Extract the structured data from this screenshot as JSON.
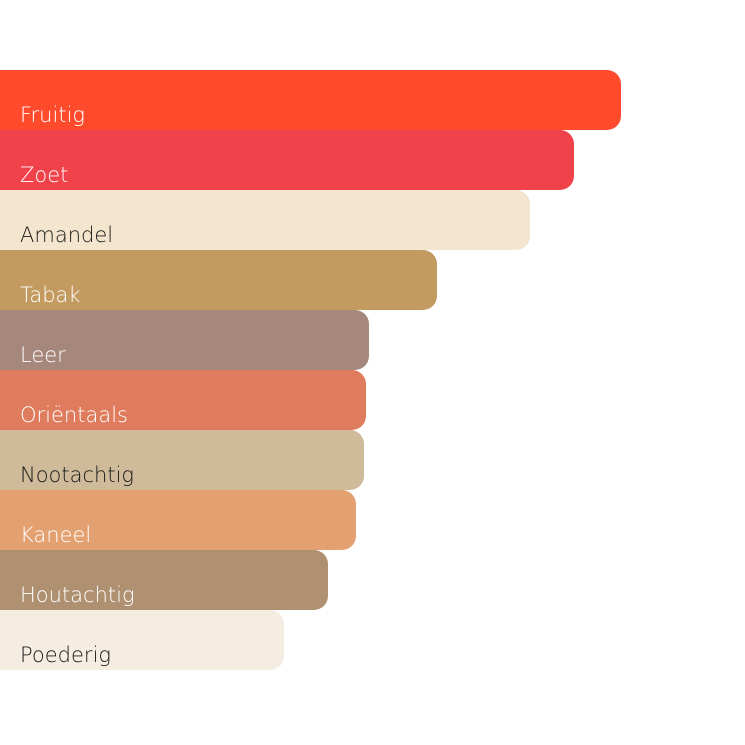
{
  "chart_data": {
    "type": "bar",
    "orientation": "horizontal",
    "title": "",
    "xlabel": "",
    "ylabel": "",
    "xlim": [
      0,
      120
    ],
    "grid": false,
    "categories": [
      "Fruitig",
      "Zoet",
      "Amandel",
      "Tabak",
      "Leer",
      "Oriëntaals",
      "Nootachtig",
      "Kaneel",
      "Houtachtig",
      "Poederig"
    ],
    "values": [
      100,
      92.4,
      85.3,
      70.4,
      59.4,
      58.9,
      58.6,
      57.3,
      52.9,
      45.8
    ],
    "colors": [
      "#FF4B2B",
      "#F0424A",
      "#F4E6CE",
      "#C39A5F",
      "#A6877C",
      "#DF7C5D",
      "#CFBA99",
      "#E3A070",
      "#AF9172",
      "#F5ECE2"
    ],
    "label_colors": [
      "#FFFFFF",
      "#FFFFFF",
      "#1A1A1A",
      "#FFFFFF",
      "#FFFFFF",
      "#FFFFFF",
      "#1A1A1A",
      "#FFFFFF",
      "#FFFFFF",
      "#1A1A1A"
    ]
  }
}
